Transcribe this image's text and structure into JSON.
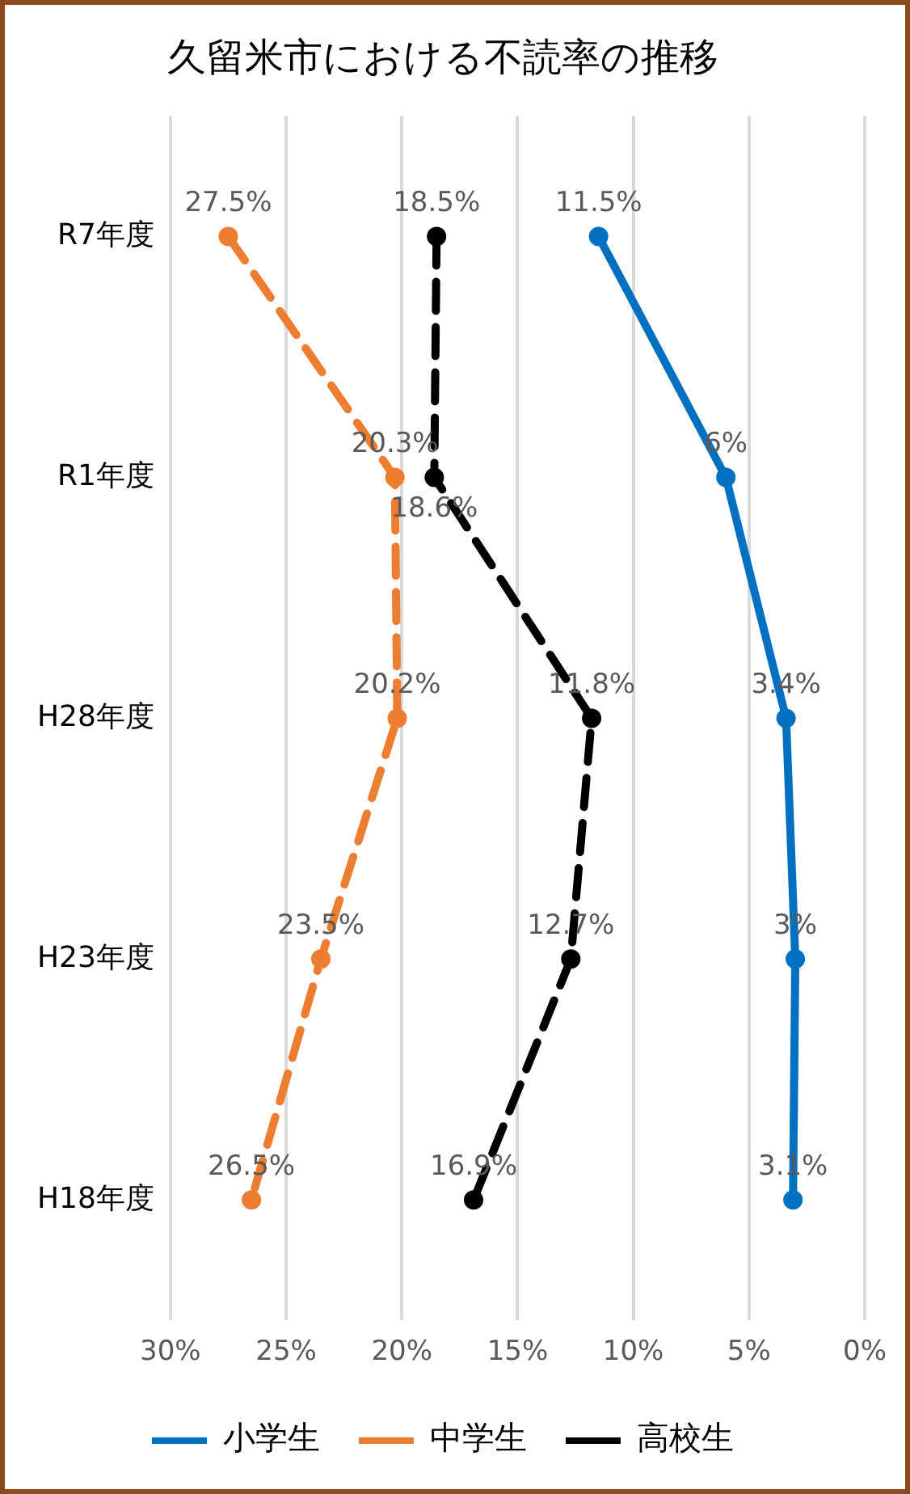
{
  "chart_data": {
    "type": "line",
    "orientation": "horizontal",
    "title": "久留米市における不読率の推移",
    "categories": [
      "R7年度",
      "R1年度",
      "H28年度",
      "H23年度",
      "H18年度"
    ],
    "series": [
      {
        "name": "小学生",
        "color": "#0070c0",
        "values": [
          11.5,
          6,
          3.4,
          3,
          3.1
        ],
        "value_labels": [
          "11.5%",
          "6%",
          "3.4%",
          "3%",
          "3.1%"
        ],
        "line_style": "solid"
      },
      {
        "name": "中学生",
        "color": "#ed7d31",
        "values": [
          27.5,
          20.3,
          20.2,
          23.5,
          26.5
        ],
        "value_labels": [
          "27.5%",
          "20.3%",
          "20.2%",
          "23.5%",
          "26.5%"
        ],
        "line_style": "dashed"
      },
      {
        "name": "高校生",
        "color": "#000000",
        "values": [
          18.5,
          18.6,
          11.8,
          12.7,
          16.9
        ],
        "value_labels": [
          "18.5%",
          "18.6%",
          "11.8%",
          "12.7%",
          "16.9%"
        ],
        "line_style": "dashed"
      }
    ],
    "xlim": [
      30,
      0
    ],
    "xticks": [
      {
        "value": 30,
        "label": "30%"
      },
      {
        "value": 25,
        "label": "25%"
      },
      {
        "value": 20,
        "label": "20%"
      },
      {
        "value": 15,
        "label": "15%"
      },
      {
        "value": 10,
        "label": "10%"
      },
      {
        "value": 5,
        "label": "5%"
      },
      {
        "value": 0,
        "label": "0%"
      }
    ],
    "grid": "x",
    "legend": "bottom",
    "marker": "circle"
  }
}
